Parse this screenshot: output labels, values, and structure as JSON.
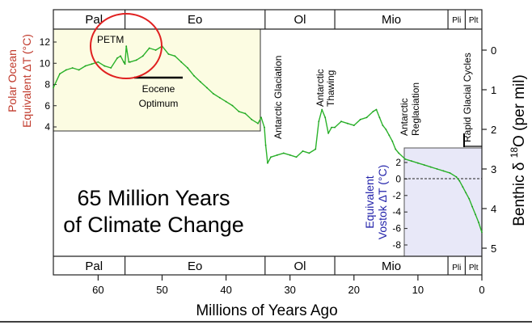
{
  "chart_data": {
    "type": "line",
    "title_lines": [
      "65 Million Years",
      "of Climate Change"
    ],
    "xlabel": "Millions of Years Ago",
    "xlim": [
      67,
      0
    ],
    "x_ticks": [
      "60",
      "50",
      "40",
      "30",
      "20",
      "10",
      "0"
    ],
    "ylabel_right": "Benthic δ 18O (per mil)",
    "ylabel_right_parts": {
      "base": "Benthic δ ",
      "sup": "18",
      "rest": "O (per mil)"
    },
    "ylim_right": [
      5,
      -0.3
    ],
    "y_ticks_right": [
      "0",
      "1",
      "2",
      "3",
      "4",
      "5"
    ],
    "ylabel_left_lines": [
      "Polar Ocean",
      "Equivalent  ΔT (°C)"
    ],
    "y_ticks_left": [
      "12",
      "10",
      "8",
      "6",
      "4"
    ],
    "ylabel_vostok_lines": [
      "Equivalent",
      "Vostok  ΔT (°C)"
    ],
    "y_ticks_vostok": [
      "2",
      "0",
      "-2",
      "-4",
      "-6",
      "-8"
    ],
    "eras": [
      {
        "label": "Pal",
        "from": 65.5,
        "to": 55.8
      },
      {
        "label": "Eo",
        "from": 55.8,
        "to": 33.9
      },
      {
        "label": "Ol",
        "from": 33.9,
        "to": 23.0
      },
      {
        "label": "Mio",
        "from": 23.0,
        "to": 5.3
      },
      {
        "label": "Pli",
        "from": 5.3,
        "to": 2.6
      },
      {
        "label": "Plt",
        "from": 2.6,
        "to": 0
      }
    ],
    "annotations": [
      {
        "text": "PETM",
        "x": 55.5
      },
      {
        "text_lines": [
          "Eocene",
          "Optimum"
        ],
        "x_range": [
          53,
          47
        ]
      },
      {
        "text": "Antarctic Glaciation",
        "x": 34
      },
      {
        "text_lines": [
          "Antarctic",
          "Thawing"
        ],
        "x": 25
      },
      {
        "text_lines": [
          "Antarctic",
          "Reglaciation"
        ],
        "x": 14
      },
      {
        "text": "Rapid Glacial Cycles",
        "x": 2.5
      }
    ],
    "series": [
      {
        "x": [
          67,
          66,
          65,
          64,
          63,
          62,
          61,
          60,
          59,
          58,
          57,
          56.5,
          56,
          55.8,
          55.6,
          55.2,
          55,
          54,
          53,
          52,
          51,
          50,
          49,
          48,
          47,
          46,
          45,
          44,
          43,
          42,
          41,
          40,
          39,
          38,
          37,
          36,
          35,
          34.5,
          34,
          33.8,
          33.5,
          33,
          32,
          31,
          30,
          29,
          28,
          27,
          26,
          25.5,
          25,
          24.5,
          24,
          23.5,
          23,
          22,
          21,
          20,
          19,
          18,
          17,
          16.5,
          16,
          15.5,
          15,
          14.5,
          14,
          13.5,
          13,
          12,
          11,
          10,
          9,
          8,
          7,
          6,
          5,
          4,
          3.5,
          3,
          2.5,
          2,
          1.5,
          1,
          0.5,
          0
        ],
        "values": [
          0.95,
          0.6,
          0.5,
          0.45,
          0.5,
          0.4,
          0.35,
          0.3,
          0.4,
          0.45,
          0.2,
          0.15,
          0.3,
          0.35,
          -0.1,
          0.3,
          0.3,
          0.25,
          0.15,
          -0.05,
          0.0,
          -0.1,
          0.1,
          0.15,
          0.3,
          0.45,
          0.65,
          0.8,
          0.95,
          1.1,
          1.2,
          1.3,
          1.4,
          1.55,
          1.6,
          1.75,
          1.85,
          1.7,
          1.95,
          2.4,
          2.85,
          2.7,
          2.65,
          2.6,
          2.65,
          2.7,
          2.55,
          2.6,
          2.5,
          1.8,
          1.5,
          1.7,
          2.1,
          1.95,
          1.95,
          1.8,
          1.85,
          1.9,
          1.75,
          1.7,
          1.55,
          1.5,
          1.7,
          1.9,
          2.0,
          2.15,
          2.3,
          2.5,
          2.6,
          2.75,
          2.8,
          2.85,
          2.9,
          2.95,
          3.0,
          3.05,
          3.1,
          3.2,
          3.3,
          3.45,
          3.6,
          3.75,
          3.95,
          4.15,
          4.35,
          4.6
        ]
      }
    ]
  }
}
